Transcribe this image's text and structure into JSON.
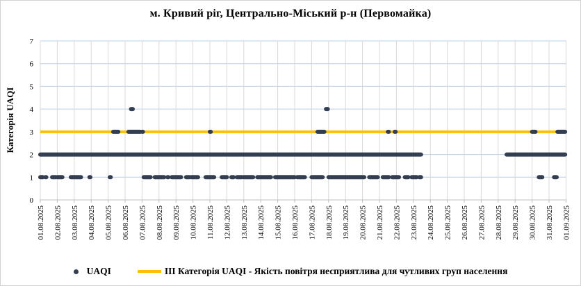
{
  "chart_data": {
    "type": "scatter",
    "title": "м. Кривий ріг, Центрально-Міський р-н (Первомайка)",
    "ylabel": "Категорія UAQI",
    "xlabel": "",
    "ylim": [
      0,
      7
    ],
    "yticks": [
      0,
      1,
      2,
      3,
      4,
      5,
      6,
      7
    ],
    "x_range_days": [
      1,
      32
    ],
    "x_tick_labels": [
      "01.08.2025",
      "02.08.2025",
      "03.08.2025",
      "04.08.2025",
      "05.08.2025",
      "06.08.2025",
      "07.08.2025",
      "08.08.2025",
      "09.08.2025",
      "10.08.2025",
      "11.08.2025",
      "12.08.2025",
      "13.08.2025",
      "14.08.2025",
      "15.08.2025",
      "16.08.2025",
      "17.08.2025",
      "18.08.2025",
      "19.08.2025",
      "20.08.2025",
      "21.08.2025",
      "22.08.2025",
      "23.08.2025",
      "24.08.2025",
      "25.08.2025",
      "26.08.2025",
      "27.08.2025",
      "28.08.2025",
      "29.08.2025",
      "30.08.2025",
      "31.08.2025",
      "01.09.2025"
    ],
    "grid": true,
    "legend_position": "bottom",
    "colors": {
      "marker": "#333F50",
      "threshold": "#FFC000",
      "h_grid": "#bdcfe8",
      "v_grid": "#d9d9d9",
      "axis": "#bfbfbf"
    },
    "threshold_line": {
      "y": 3
    },
    "series": [
      {
        "name": "UAQI",
        "marker": "circle",
        "color": "#333F50",
        "runs_by_category": {
          "1": [
            [
              1.0,
              1.15
            ],
            [
              1.3,
              1.35
            ],
            [
              1.7,
              1.9
            ],
            [
              2.0,
              2.3
            ],
            [
              2.8,
              3.4
            ],
            [
              3.9,
              3.95
            ],
            [
              5.1,
              5.15
            ],
            [
              7.1,
              7.5
            ],
            [
              7.75,
              8.3
            ],
            [
              8.5,
              8.55
            ],
            [
              8.75,
              9.3
            ],
            [
              9.6,
              9.8
            ],
            [
              9.9,
              10.3
            ],
            [
              10.75,
              11.25
            ],
            [
              11.7,
              12.0
            ],
            [
              12.27,
              12.4
            ],
            [
              12.6,
              12.9
            ],
            [
              13.0,
              13.55
            ],
            [
              13.8,
              14.1
            ],
            [
              14.15,
              14.6
            ],
            [
              14.85,
              15.6
            ],
            [
              15.65,
              16.0
            ],
            [
              16.15,
              16.6
            ],
            [
              17.0,
              17.65
            ],
            [
              18.0,
              18.5
            ],
            [
              18.55,
              19.3
            ],
            [
              19.35,
              19.6
            ],
            [
              19.65,
              20.1
            ],
            [
              20.4,
              20.9
            ],
            [
              21.2,
              21.55
            ],
            [
              21.75,
              22.15
            ],
            [
              22.5,
              22.7
            ],
            [
              22.9,
              23.2
            ],
            [
              23.35,
              23.45
            ],
            [
              30.4,
              30.6
            ],
            [
              31.3,
              31.45
            ]
          ],
          "2": [
            [
              1.0,
              23.45
            ],
            [
              28.5,
              31.95
            ]
          ],
          "3": [
            [
              5.3,
              5.6
            ],
            [
              6.2,
              6.9
            ],
            [
              7.0,
              7.05
            ],
            [
              11.0,
              11.05
            ],
            [
              17.35,
              17.75
            ],
            [
              21.5,
              21.55
            ],
            [
              21.9,
              21.95
            ],
            [
              30.0,
              30.2
            ],
            [
              31.5,
              31.95
            ]
          ],
          "4": [
            [
              6.35,
              6.45
            ],
            [
              17.85,
              17.95
            ]
          ]
        }
      }
    ]
  },
  "legend": {
    "items": [
      {
        "marker": "dot",
        "label": "UAQI"
      },
      {
        "marker": "line",
        "label": "ІІІ Категорія UAQI - Якість повітря несприятлива для чутливих груп населення"
      }
    ]
  }
}
